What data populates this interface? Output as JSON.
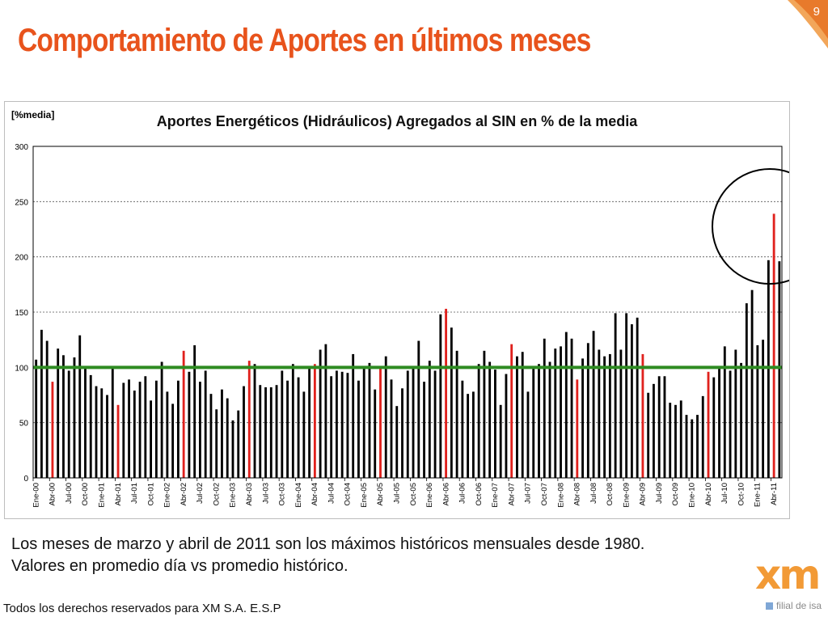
{
  "slide": {
    "title": "Comportamiento de Aportes en últimos meses",
    "page_number": "9",
    "caption_lines": [
      "Los meses de marzo y abril de 2011 son los máximos históricos mensuales desde 1980.",
      "Valores en promedio día vs promedio histórico."
    ],
    "footer": "Todos los derechos reservados para XM S.A. E.S.P",
    "logo_text": "xm",
    "logo_tagline": "filial de isa"
  },
  "colors": {
    "title": "#e8531c",
    "bar_default": "#000000",
    "bar_highlight": "#e0211d",
    "reference_line": "#2e8b22",
    "highlight_circle": "#000000"
  },
  "chart_data": {
    "type": "bar",
    "title": "Aportes Energéticos (Hidráulicos) Agregados al SIN en % de la media",
    "ylabel": "[%media]",
    "xlabel": "",
    "ylim": [
      0,
      300
    ],
    "yticks": [
      0,
      50,
      100,
      150,
      200,
      250,
      300
    ],
    "grid": "horizontal-dotted",
    "reference_line": 100,
    "start": "Ene-00",
    "tick_labels": [
      "Ene-00",
      "Abr-00",
      "Jul-00",
      "Oct-00",
      "Ene-01",
      "Abr-01",
      "Jul-01",
      "Oct-01",
      "Ene-02",
      "Abr-02",
      "Jul-02",
      "Oct-02",
      "Ene-03",
      "Abr-03",
      "Jul-03",
      "Oct-03",
      "Ene-04",
      "Abr-04",
      "Jul-04",
      "Oct-04",
      "Ene-05",
      "Abr-05",
      "Jul-05",
      "Oct-05",
      "Ene-06",
      "Abr-06",
      "Jul-06",
      "Oct-06",
      "Ene-07",
      "Abr-07",
      "Jul-07",
      "Oct-07",
      "Ene-08",
      "Abr-08",
      "Jul-08",
      "Oct-08",
      "Ene-09",
      "Abr-09",
      "Jul-09",
      "Oct-09",
      "Ene-10",
      "Abr-10",
      "Jul-10",
      "Oct-10",
      "Ene-11",
      "Abr-11"
    ],
    "values": [
      107,
      134,
      124,
      87,
      117,
      111,
      97,
      109,
      129,
      99,
      93,
      83,
      81,
      75,
      99,
      66,
      86,
      89,
      79,
      87,
      92,
      70,
      88,
      105,
      78,
      67,
      88,
      115,
      96,
      120,
      87,
      97,
      76,
      62,
      80,
      72,
      52,
      61,
      83,
      106,
      103,
      84,
      82,
      82,
      84,
      97,
      88,
      103,
      91,
      78,
      99,
      103,
      116,
      121,
      92,
      97,
      96,
      95,
      112,
      88,
      99,
      104,
      80,
      99,
      110,
      89,
      65,
      81,
      97,
      99,
      124,
      87,
      106,
      97,
      148,
      153,
      136,
      115,
      88,
      76,
      78,
      103,
      115,
      105,
      98,
      66,
      94,
      121,
      110,
      114,
      78,
      99,
      103,
      126,
      105,
      117,
      119,
      132,
      126,
      89,
      108,
      122,
      133,
      116,
      110,
      112,
      149,
      116,
      149,
      139,
      145,
      112,
      77,
      85,
      92,
      92,
      68,
      66,
      70,
      57,
      53,
      57,
      74,
      96,
      91,
      99,
      119,
      97,
      116,
      104,
      158,
      170,
      120,
      125,
      197,
      239,
      196
    ],
    "highlight_months": [
      "Abr-00",
      "Abr-01",
      "Abr-02",
      "Abr-03",
      "Abr-04",
      "Abr-05",
      "Abr-06",
      "Abr-07",
      "Abr-08",
      "Abr-09",
      "Abr-10",
      "Abr-11"
    ],
    "highlight_indices": [
      3,
      15,
      27,
      39,
      51,
      63,
      75,
      87,
      99,
      111,
      123,
      135
    ]
  }
}
